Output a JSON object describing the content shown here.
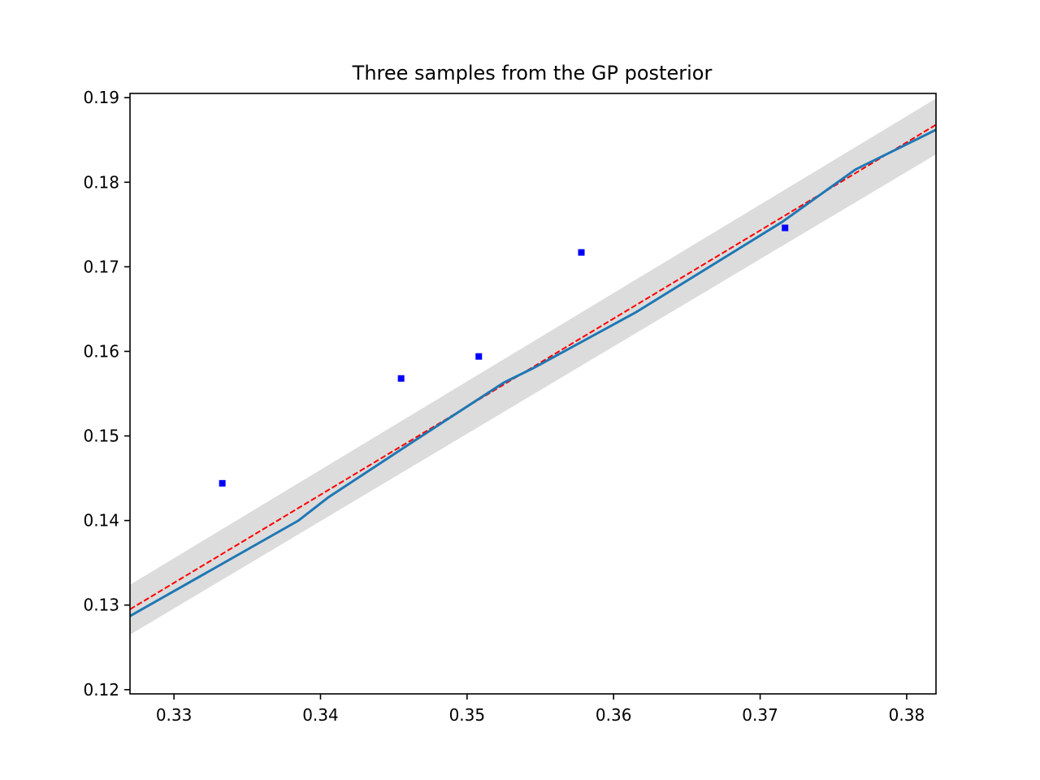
{
  "chart_data": {
    "type": "line",
    "title": "Three samples from the GP posterior",
    "xlabel": "",
    "ylabel": "",
    "xlim": [
      0.327,
      0.382
    ],
    "ylim": [
      0.1195,
      0.1905
    ],
    "xticks": [
      0.33,
      0.34,
      0.35,
      0.36,
      0.37,
      0.38
    ],
    "xtick_labels": [
      "0.33",
      "0.34",
      "0.35",
      "0.36",
      "0.37",
      "0.38"
    ],
    "yticks": [
      0.12,
      0.13,
      0.14,
      0.15,
      0.16,
      0.17,
      0.18,
      0.19
    ],
    "ytick_labels": [
      "0.12",
      "0.13",
      "0.14",
      "0.15",
      "0.16",
      "0.17",
      "0.18",
      "0.19"
    ],
    "grid": false,
    "legend": false,
    "series": [
      {
        "kind": "band",
        "color": "#dcdcdc",
        "x": [
          0.327,
          0.382
        ],
        "lower": [
          0.1265,
          0.1833
        ],
        "upper": [
          0.1324,
          0.1899
        ]
      },
      {
        "kind": "line",
        "style": "dashed",
        "color": "#ff0000",
        "x": [
          0.327,
          0.382
        ],
        "y": [
          0.1295,
          0.1868
        ]
      },
      {
        "kind": "line",
        "style": "solid",
        "color": "#1f77b4",
        "x": [
          0.327,
          0.3385,
          0.3405,
          0.3455,
          0.3525,
          0.3545,
          0.3615,
          0.3715,
          0.3765,
          0.382
        ],
        "y": [
          0.1287,
          0.14,
          0.1427,
          0.1484,
          0.1563,
          0.158,
          0.1646,
          0.1753,
          0.1815,
          0.1862
        ]
      },
      {
        "kind": "scatter",
        "marker": "square",
        "color": "#0000ff",
        "x": [
          0.3333,
          0.3455,
          0.3508,
          0.3578,
          0.3717
        ],
        "y": [
          0.1444,
          0.1568,
          0.1594,
          0.1717,
          0.1746
        ]
      }
    ]
  }
}
